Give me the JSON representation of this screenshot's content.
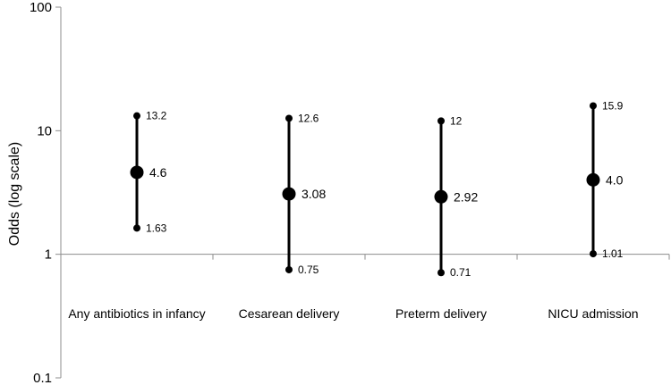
{
  "chart_data": {
    "type": "scatter",
    "ylabel": "Odds (log scale)",
    "y_scale": "log",
    "ylim": [
      0.1,
      100
    ],
    "y_ticks": [
      "0.1",
      "1",
      "10",
      "100"
    ],
    "grid": false,
    "reference_line_y": 1,
    "categories": [
      "Any antibiotics in infancy",
      "Cesarean delivery",
      "Preterm delivery",
      "NICU admission"
    ],
    "points": [
      {
        "category": "Any antibiotics in infancy",
        "estimate": 4.6,
        "lower": 1.63,
        "upper": 13.2,
        "estimate_label": "4.6",
        "lower_label": "1.63",
        "upper_label": "13.2"
      },
      {
        "category": "Cesarean delivery",
        "estimate": 3.08,
        "lower": 0.75,
        "upper": 12.6,
        "estimate_label": "3.08",
        "lower_label": "0.75",
        "upper_label": "12.6"
      },
      {
        "category": "Preterm delivery",
        "estimate": 2.92,
        "lower": 0.71,
        "upper": 12,
        "estimate_label": "2.92",
        "lower_label": "0.71",
        "upper_label": "12"
      },
      {
        "category": "NICU admission",
        "estimate": 4.0,
        "lower": 1.01,
        "upper": 15.9,
        "estimate_label": "4.0",
        "lower_label": "1.01",
        "upper_label": "15.9"
      }
    ]
  }
}
